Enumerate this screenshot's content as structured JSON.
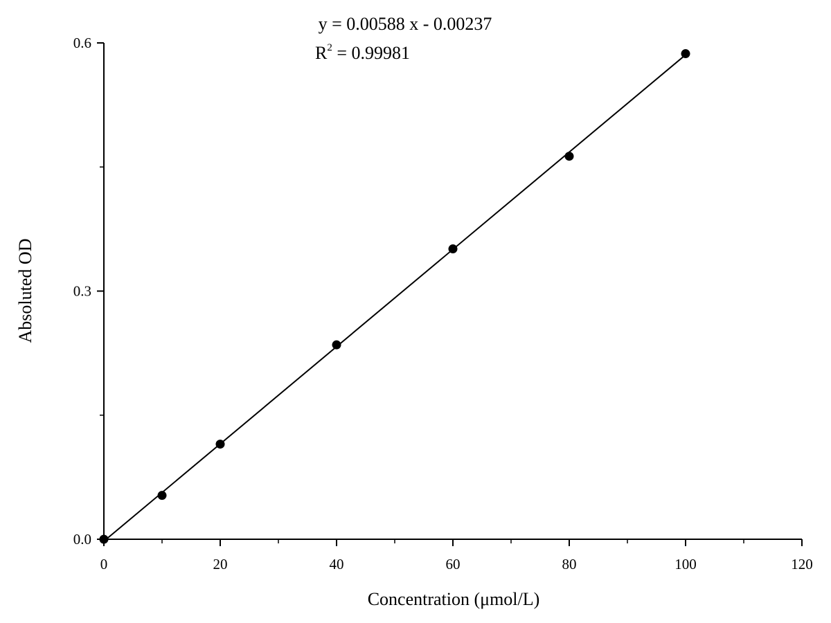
{
  "chart_data": {
    "type": "scatter",
    "title": "",
    "xlabel": "Concentration (μmol/L)",
    "ylabel": "Absoluted OD",
    "xlim": [
      0,
      120
    ],
    "ylim": [
      0,
      0.6
    ],
    "xticks": [
      0,
      20,
      40,
      60,
      80,
      100,
      120
    ],
    "xtick_labels": [
      "0",
      "20",
      "40",
      "60",
      "80",
      "100",
      "120"
    ],
    "yticks": [
      0.0,
      0.3,
      0.6
    ],
    "ytick_labels": [
      "0.0",
      "0.3",
      "0.6"
    ],
    "grid": false,
    "series": [
      {
        "x": [
          0,
          10,
          20,
          40,
          60,
          80,
          100
        ],
        "y": [
          0.0,
          0.053,
          0.115,
          0.235,
          0.351,
          0.463,
          0.587
        ],
        "marker": "circle",
        "color": "#000000"
      }
    ],
    "fit_line": {
      "slope": 0.00588,
      "intercept": -0.00237,
      "x_range": [
        0,
        100
      ]
    },
    "annotations": {
      "equation": "y = 0.00588 x - 0.00237",
      "r2_prefix": "R",
      "r2_sup": "2",
      "r2_value": " = 0.99981"
    }
  }
}
